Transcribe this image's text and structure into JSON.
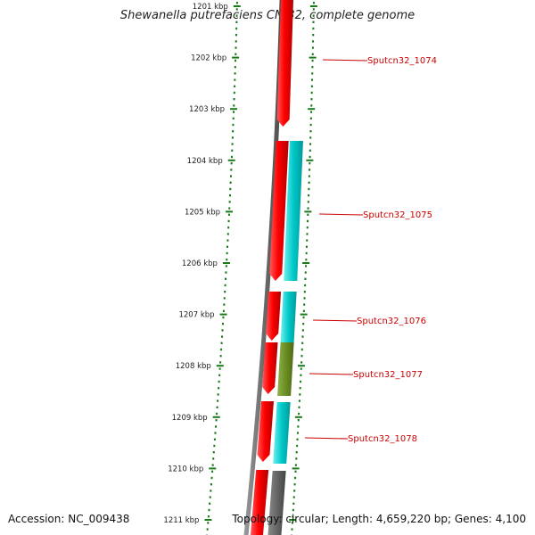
{
  "title": "Shewanella putrefaciens CN-32, complete genome",
  "accession": "Accession: NC_009438",
  "summary": "Topology: circular; Length: 4,659,220 bp; Genes: 4,100",
  "ruler_labels": [
    "1201 kbp",
    "1202 kbp",
    "1203 kbp",
    "1204 kbp",
    "1205 kbp",
    "1206 kbp",
    "1207 kbp",
    "1208 kbp",
    "1209 kbp",
    "1210 kbp",
    "1211 kbp"
  ],
  "colors": {
    "tick": "#1a7a1a",
    "backbone": "#7a7a7a",
    "gene": "#ff0000",
    "cds_cyan": "#00cccc",
    "cds_olive": "#6b8e23",
    "cds_gray": "#666666",
    "label": "#cc0000"
  },
  "genes": [
    {
      "label": "Sputcn32_1074",
      "cds_color": "none"
    },
    {
      "label": "Sputcn32_1075",
      "cds_color": "cyan"
    },
    {
      "label": "Sputcn32_1076",
      "cds_color": "cyan"
    },
    {
      "label": "Sputcn32_1077",
      "cds_color": "olive"
    },
    {
      "label": "Sputcn32_1078",
      "cds_color": "cyan"
    },
    {
      "label": "",
      "cds_color": "gray"
    }
  ]
}
